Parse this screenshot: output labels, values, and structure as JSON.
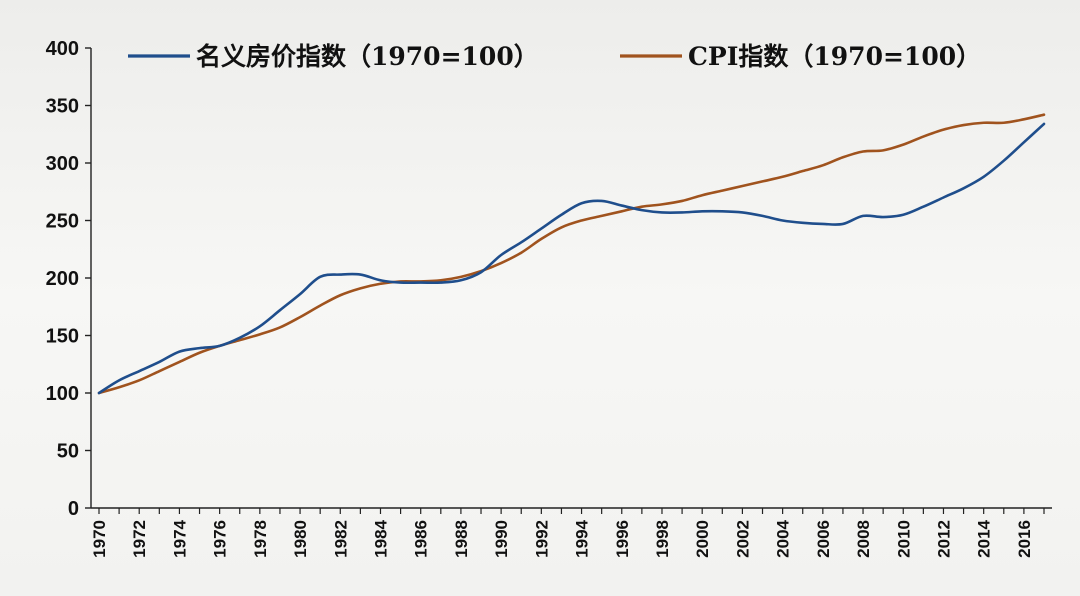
{
  "chart_data": {
    "type": "line",
    "title": "",
    "xlabel": "",
    "ylabel": "",
    "ylim": [
      0,
      400
    ],
    "yticks": [
      0,
      50,
      100,
      150,
      200,
      250,
      300,
      350,
      400
    ],
    "xticks": [
      "1970",
      "1972",
      "1974",
      "1976",
      "1978",
      "1980",
      "1982",
      "1984",
      "1986",
      "1988",
      "1990",
      "1992",
      "1994",
      "1996",
      "1998",
      "2000",
      "2002",
      "2004",
      "2006",
      "2008",
      "2010",
      "2012",
      "2014",
      "2016"
    ],
    "x": [
      1970,
      1971,
      1972,
      1973,
      1974,
      1975,
      1976,
      1977,
      1978,
      1979,
      1980,
      1981,
      1982,
      1983,
      1984,
      1985,
      1986,
      1987,
      1988,
      1989,
      1990,
      1991,
      1992,
      1993,
      1994,
      1995,
      1996,
      1997,
      1998,
      1999,
      2000,
      2001,
      2002,
      2003,
      2004,
      2005,
      2006,
      2007,
      2008,
      2009,
      2010,
      2011,
      2012,
      2013,
      2014,
      2015,
      2016,
      2017
    ],
    "grid": false,
    "legend_position": "top",
    "series": [
      {
        "name": "名义房价指数（1970=100）",
        "color": "#1f4e8c",
        "values": [
          100,
          111,
          119,
          127,
          136,
          139,
          141,
          148,
          158,
          172,
          186,
          201,
          203,
          203,
          198,
          196,
          196,
          196,
          198,
          205,
          220,
          231,
          243,
          255,
          265,
          267,
          263,
          259,
          257,
          257,
          258,
          258,
          257,
          254,
          250,
          248,
          247,
          247,
          254,
          253,
          255,
          262,
          270,
          278,
          288,
          302,
          318,
          334
        ]
      },
      {
        "name": "CPI指数（1970=100）",
        "color": "#a0531e",
        "values": [
          100,
          105,
          111,
          119,
          127,
          135,
          141,
          146,
          151,
          157,
          166,
          176,
          185,
          191,
          195,
          197,
          197,
          198,
          201,
          206,
          213,
          222,
          234,
          244,
          250,
          254,
          258,
          262,
          264,
          267,
          272,
          276,
          280,
          284,
          288,
          293,
          298,
          305,
          310,
          311,
          316,
          323,
          329,
          333,
          335,
          335,
          338,
          342
        ]
      }
    ]
  }
}
